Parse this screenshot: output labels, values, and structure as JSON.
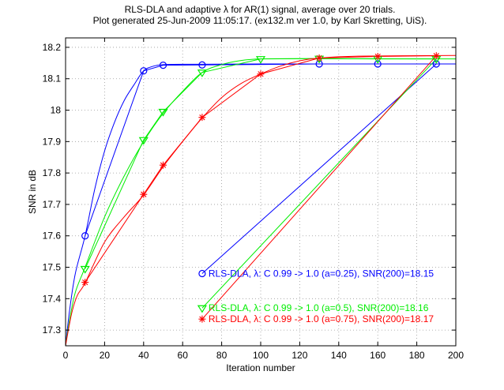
{
  "chart_data": {
    "type": "line",
    "title_lines": [
      "RLS-DLA and adaptive λ for AR(1) signal, average over 20 trials.",
      "Plot generated 25-Jun-2009 11:05:17. (ex132.m ver 1.0, by Karl Skretting, UiS)."
    ],
    "xlabel": "Iteration number",
    "ylabel": "SNR in dB",
    "xlim": [
      0,
      200
    ],
    "ylim": [
      17.25,
      18.23
    ],
    "xticks": [
      0,
      20,
      40,
      60,
      80,
      100,
      120,
      140,
      160,
      180,
      200
    ],
    "yticks": [
      17.3,
      17.4,
      17.5,
      17.6,
      17.7,
      17.8,
      17.9,
      18.0,
      18.1,
      18.2
    ],
    "ytick_labels": [
      "17.3",
      "17.4",
      "17.5",
      "17.6",
      "17.7",
      "17.8",
      "17.9",
      "18",
      "18.1",
      "18.2"
    ],
    "grid": true,
    "series": [
      {
        "name": "a=0.25",
        "color": "#0000ff",
        "marker": "circle",
        "curve": [
          [
            0,
            17.25
          ],
          [
            2,
            17.36
          ],
          [
            5,
            17.48
          ],
          [
            10,
            17.6
          ],
          [
            15,
            17.75
          ],
          [
            20,
            17.87
          ],
          [
            25,
            17.96
          ],
          [
            30,
            18.03
          ],
          [
            35,
            18.08
          ],
          [
            40,
            18.125
          ],
          [
            45,
            18.14
          ],
          [
            50,
            18.145
          ],
          [
            60,
            18.146
          ],
          [
            100,
            18.147
          ],
          [
            200,
            18.147
          ]
        ],
        "marker_points": [
          [
            10,
            17.6
          ],
          [
            40,
            18.125
          ],
          [
            50,
            18.143
          ],
          [
            70,
            18.144
          ],
          [
            130,
            18.147
          ],
          [
            160,
            18.147
          ],
          [
            190,
            18.147
          ]
        ],
        "legend_point": [
          70,
          17.48
        ],
        "legend_label": "RLS-DLA, λ: C 0.99 -> 1.0 (a=0.25), SNR(200)=18.15"
      },
      {
        "name": "a=0.5",
        "color": "#00ee00",
        "marker": "triangle-down",
        "curve": [
          [
            0,
            17.25
          ],
          [
            2,
            17.33
          ],
          [
            5,
            17.42
          ],
          [
            10,
            17.5
          ],
          [
            20,
            17.66
          ],
          [
            30,
            17.79
          ],
          [
            40,
            17.9
          ],
          [
            50,
            17.99
          ],
          [
            60,
            18.06
          ],
          [
            70,
            18.12
          ],
          [
            80,
            18.145
          ],
          [
            90,
            18.158
          ],
          [
            100,
            18.163
          ],
          [
            120,
            18.164
          ],
          [
            200,
            18.163
          ]
        ],
        "marker_points": [
          [
            10,
            17.495
          ],
          [
            40,
            17.905
          ],
          [
            50,
            17.995
          ],
          [
            70,
            18.12
          ],
          [
            100,
            18.163
          ],
          [
            130,
            18.164
          ],
          [
            160,
            18.163
          ],
          [
            190,
            18.163
          ]
        ],
        "legend_point": [
          70,
          17.37
        ],
        "legend_label": "RLS-DLA, λ: C 0.99 -> 1.0 (a=0.5), SNR(200)=18.16"
      },
      {
        "name": "a=0.75",
        "color": "#ff0000",
        "marker": "star",
        "curve": [
          [
            0,
            17.25
          ],
          [
            3,
            17.35
          ],
          [
            6,
            17.41
          ],
          [
            10,
            17.45
          ],
          [
            20,
            17.58
          ],
          [
            30,
            17.66
          ],
          [
            40,
            17.73
          ],
          [
            50,
            17.82
          ],
          [
            60,
            17.9
          ],
          [
            70,
            17.975
          ],
          [
            80,
            18.04
          ],
          [
            90,
            18.085
          ],
          [
            100,
            18.115
          ],
          [
            110,
            18.14
          ],
          [
            120,
            18.157
          ],
          [
            130,
            18.166
          ],
          [
            150,
            18.172
          ],
          [
            200,
            18.174
          ]
        ],
        "marker_points": [
          [
            10,
            17.452
          ],
          [
            40,
            17.732
          ],
          [
            50,
            17.825
          ],
          [
            70,
            17.977
          ],
          [
            100,
            18.115
          ],
          [
            130,
            18.166
          ],
          [
            160,
            18.171
          ],
          [
            190,
            18.173
          ]
        ],
        "legend_point": [
          70,
          17.335
        ],
        "legend_label": "RLS-DLA, λ: C 0.99 -> 1.0 (a=0.75), SNR(200)=18.17"
      }
    ]
  }
}
